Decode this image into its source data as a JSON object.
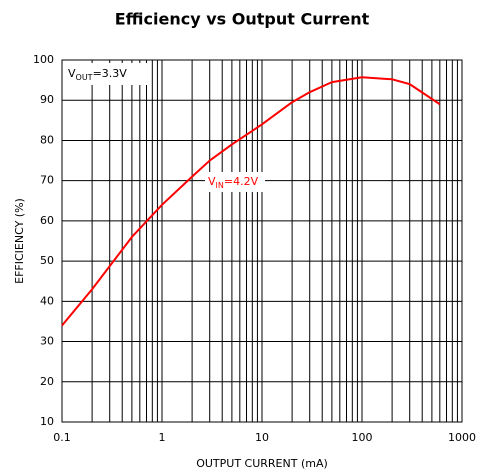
{
  "chart_data": {
    "type": "line",
    "title": "Efficiency vs Output Current",
    "x_label": "OUTPUT CURRENT (mA)",
    "y_label": "EFFICIENCY (%)",
    "x": [
      0.1,
      0.2,
      0.5,
      1,
      2,
      3,
      5,
      10,
      20,
      30,
      50,
      100,
      200,
      300,
      600
    ],
    "series": [
      {
        "name": "VIN=4.2V",
        "color": "#ff0000",
        "values": [
          34,
          43,
          56,
          64,
          71,
          75,
          79,
          84,
          89.5,
          92,
          94.5,
          95.7,
          95.2,
          94,
          89
        ]
      }
    ],
    "xlim": [
      0.1,
      1000
    ],
    "xticks": [
      0.1,
      1,
      10,
      100,
      1000
    ],
    "x_log": true,
    "ylim": [
      10,
      100
    ],
    "yticks": [
      10,
      20,
      30,
      40,
      50,
      60,
      70,
      80,
      90,
      100
    ],
    "grid": true,
    "annotations": [
      {
        "parts": [
          "V",
          "OUT",
          "=3.3V"
        ],
        "color": "#000000"
      },
      {
        "parts": [
          "V",
          "IN",
          "=4.2V"
        ],
        "color": "#ff0000"
      }
    ]
  }
}
